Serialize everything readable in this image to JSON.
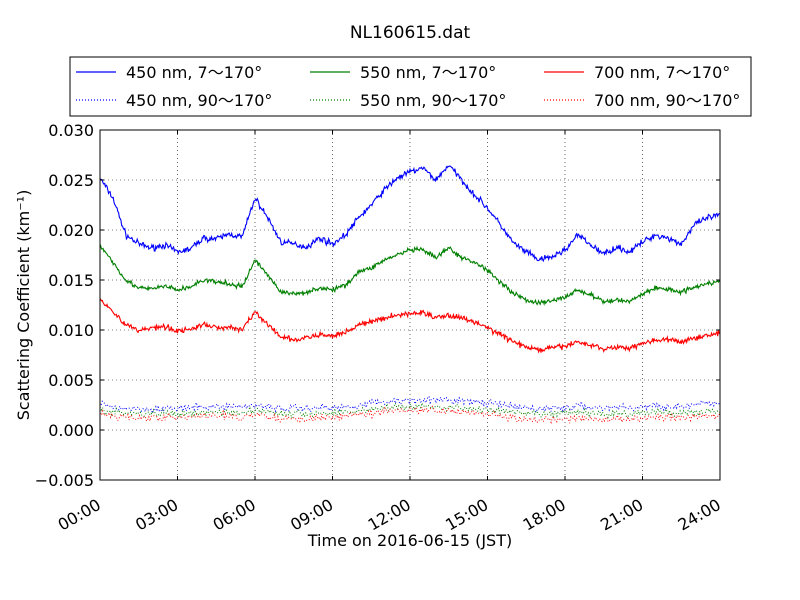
{
  "chart_data": {
    "type": "line",
    "title": "NL160615.dat",
    "xlabel": "Time on 2016-06-15 (JST)",
    "ylabel": "Scattering Coefficient (km⁻¹)",
    "xlim": [
      0,
      24
    ],
    "ylim": [
      -0.005,
      0.03
    ],
    "x_unit": "hours",
    "x_ticks": [
      0,
      3,
      6,
      9,
      12,
      15,
      18,
      21,
      24
    ],
    "x_tick_labels": [
      "00:00",
      "03:00",
      "06:00",
      "09:00",
      "12:00",
      "15:00",
      "18:00",
      "21:00",
      "24:00"
    ],
    "y_ticks": [
      -0.005,
      0,
      0.005,
      0.01,
      0.015,
      0.02,
      0.025,
      0.03
    ],
    "y_tick_labels": [
      "−0.005",
      "0.000",
      "0.005",
      "0.010",
      "0.015",
      "0.020",
      "0.025",
      "0.030"
    ],
    "grid": true,
    "legend_position": "top",
    "legend_columns": 3,
    "x": [
      0,
      0.5,
      1,
      1.5,
      2,
      2.5,
      3,
      3.5,
      4,
      4.5,
      5,
      5.5,
      6,
      6.5,
      7,
      7.5,
      8,
      8.5,
      9,
      9.5,
      10,
      10.5,
      11,
      11.5,
      12,
      12.5,
      13,
      13.5,
      14,
      14.5,
      15,
      15.5,
      16,
      16.5,
      17,
      17.5,
      18,
      18.5,
      19,
      19.5,
      20,
      20.5,
      21,
      21.5,
      22,
      22.5,
      23,
      23.5,
      24
    ],
    "series": [
      {
        "name": "450 nm, 7～170°",
        "color": "#0000ff",
        "style": "solid",
        "values": [
          0.0252,
          0.0232,
          0.0195,
          0.0186,
          0.0182,
          0.0185,
          0.0178,
          0.0181,
          0.0192,
          0.0191,
          0.0196,
          0.0193,
          0.0232,
          0.0212,
          0.0188,
          0.0186,
          0.0183,
          0.0192,
          0.0186,
          0.0195,
          0.0212,
          0.0225,
          0.024,
          0.0252,
          0.0258,
          0.0262,
          0.025,
          0.0265,
          0.025,
          0.0235,
          0.0222,
          0.0205,
          0.0187,
          0.0178,
          0.017,
          0.0173,
          0.018,
          0.0195,
          0.0185,
          0.0176,
          0.0183,
          0.0178,
          0.0188,
          0.0195,
          0.0192,
          0.0186,
          0.0205,
          0.0212,
          0.0215
        ]
      },
      {
        "name": "450 nm, 90～170°",
        "color": "#0000ff",
        "style": "dotted",
        "values": [
          0.0026,
          0.0023,
          0.0022,
          0.0021,
          0.0021,
          0.0022,
          0.0021,
          0.0022,
          0.0023,
          0.0023,
          0.0024,
          0.0023,
          0.0025,
          0.0024,
          0.0021,
          0.0022,
          0.0022,
          0.0023,
          0.0022,
          0.0023,
          0.0025,
          0.0027,
          0.0028,
          0.0029,
          0.003,
          0.0031,
          0.0029,
          0.003,
          0.0029,
          0.0028,
          0.0027,
          0.0025,
          0.0023,
          0.0022,
          0.0021,
          0.0022,
          0.0022,
          0.0024,
          0.0023,
          0.0022,
          0.0023,
          0.0022,
          0.0023,
          0.0024,
          0.0024,
          0.0023,
          0.0025,
          0.0026,
          0.0027
        ]
      },
      {
        "name": "550 nm, 7～170°",
        "color": "#008000",
        "style": "solid",
        "values": [
          0.0185,
          0.0168,
          0.015,
          0.0142,
          0.0141,
          0.0144,
          0.014,
          0.0143,
          0.015,
          0.0148,
          0.0146,
          0.0143,
          0.017,
          0.0155,
          0.0138,
          0.0136,
          0.0138,
          0.0142,
          0.014,
          0.0145,
          0.0158,
          0.0162,
          0.017,
          0.0175,
          0.018,
          0.018,
          0.0172,
          0.0182,
          0.0172,
          0.0168,
          0.016,
          0.0148,
          0.0137,
          0.013,
          0.0127,
          0.0129,
          0.0133,
          0.014,
          0.0135,
          0.0128,
          0.013,
          0.0129,
          0.0136,
          0.0142,
          0.0141,
          0.0138,
          0.0143,
          0.0147,
          0.0148
        ]
      },
      {
        "name": "550 nm, 90～170°",
        "color": "#008000",
        "style": "dotted",
        "values": [
          0.002,
          0.0018,
          0.0017,
          0.0016,
          0.0016,
          0.0017,
          0.0016,
          0.0017,
          0.0018,
          0.0018,
          0.0018,
          0.0017,
          0.002,
          0.0019,
          0.0016,
          0.0016,
          0.0016,
          0.0017,
          0.0017,
          0.0018,
          0.0019,
          0.0021,
          0.0022,
          0.0023,
          0.0023,
          0.0024,
          0.0022,
          0.0023,
          0.0022,
          0.0021,
          0.002,
          0.0019,
          0.0017,
          0.0016,
          0.0016,
          0.0016,
          0.0017,
          0.0018,
          0.0017,
          0.0016,
          0.0017,
          0.0016,
          0.0017,
          0.0018,
          0.0018,
          0.0017,
          0.0018,
          0.0019,
          0.0019
        ]
      },
      {
        "name": "700 nm, 7～170°",
        "color": "#ff0000",
        "style": "solid",
        "values": [
          0.0132,
          0.0118,
          0.0105,
          0.01,
          0.0102,
          0.0104,
          0.0099,
          0.0101,
          0.0105,
          0.0103,
          0.0102,
          0.0101,
          0.0118,
          0.0105,
          0.0093,
          0.009,
          0.0092,
          0.0095,
          0.0094,
          0.0098,
          0.0105,
          0.0108,
          0.0112,
          0.0115,
          0.0116,
          0.0118,
          0.0112,
          0.0115,
          0.0112,
          0.0108,
          0.0102,
          0.0096,
          0.0088,
          0.0083,
          0.008,
          0.0082,
          0.0084,
          0.0088,
          0.0085,
          0.0081,
          0.0083,
          0.0082,
          0.0087,
          0.009,
          0.009,
          0.0088,
          0.0092,
          0.0095,
          0.0097
        ]
      },
      {
        "name": "700 nm, 90～170°",
        "color": "#ff0000",
        "style": "dotted",
        "values": [
          0.0016,
          0.0014,
          0.0013,
          0.0012,
          0.0013,
          0.0013,
          0.0012,
          0.0013,
          0.0014,
          0.0014,
          0.0014,
          0.0013,
          0.0016,
          0.0014,
          0.0011,
          0.0011,
          0.0012,
          0.0013,
          0.0013,
          0.0014,
          0.0016,
          0.0017,
          0.0019,
          0.002,
          0.002,
          0.0021,
          0.0019,
          0.002,
          0.0019,
          0.0018,
          0.0016,
          0.0014,
          0.0012,
          0.001,
          0.0009,
          0.001,
          0.001,
          0.0012,
          0.0011,
          0.001,
          0.0011,
          0.001,
          0.0012,
          0.0013,
          0.0013,
          0.0012,
          0.0013,
          0.0014,
          0.0014
        ]
      }
    ]
  }
}
